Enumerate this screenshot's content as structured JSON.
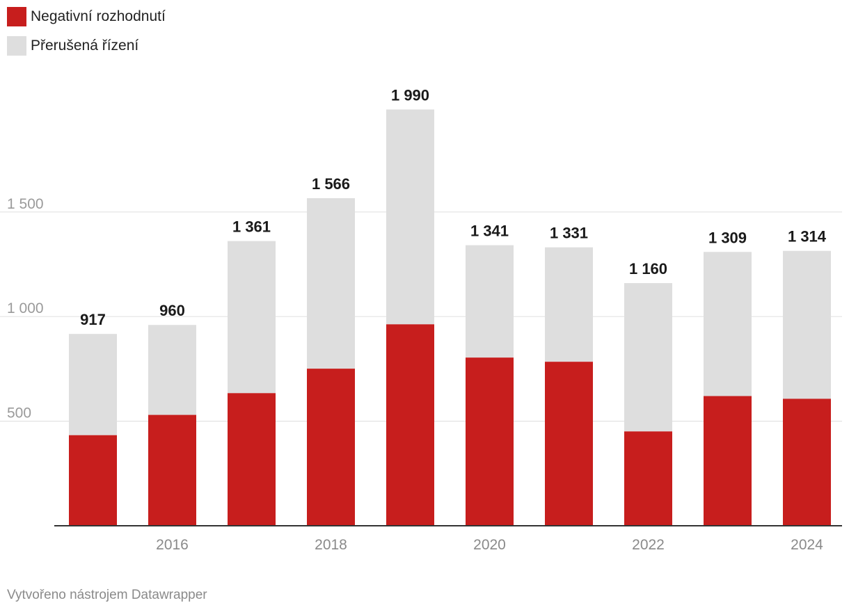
{
  "chart_data": {
    "type": "bar",
    "stacked": true,
    "categories": [
      "2015",
      "2016",
      "2017",
      "2018",
      "2019",
      "2020",
      "2021",
      "2022",
      "2023",
      "2024"
    ],
    "x_tick_labels": [
      "2016",
      "2018",
      "2020",
      "2022",
      "2024"
    ],
    "series": [
      {
        "name": "Negativní rozhodnutí",
        "color": "#c71e1d",
        "values": [
          433,
          530,
          634,
          751,
          963,
          804,
          784,
          451,
          620,
          607
        ]
      },
      {
        "name": "Přerušená řízení",
        "color": "#dedede",
        "values": [
          484,
          430,
          727,
          815,
          1027,
          537,
          547,
          709,
          689,
          707
        ]
      }
    ],
    "totals": [
      917,
      960,
      1361,
      1566,
      1990,
      1341,
      1331,
      1160,
      1309,
      1314
    ],
    "total_labels": [
      "917",
      "960",
      "1 361",
      "1 566",
      "1 990",
      "1 341",
      "1 331",
      "1 160",
      "1 309",
      "1 314"
    ],
    "y_ticks": [
      500,
      1000,
      1500
    ],
    "y_tick_labels": [
      "500",
      "1 000",
      "1 500"
    ],
    "ylim": [
      0,
      2000
    ],
    "grid": true,
    "legend_position": "top-left"
  },
  "footer": "Vytvořeno nástrojem Datawrapper"
}
